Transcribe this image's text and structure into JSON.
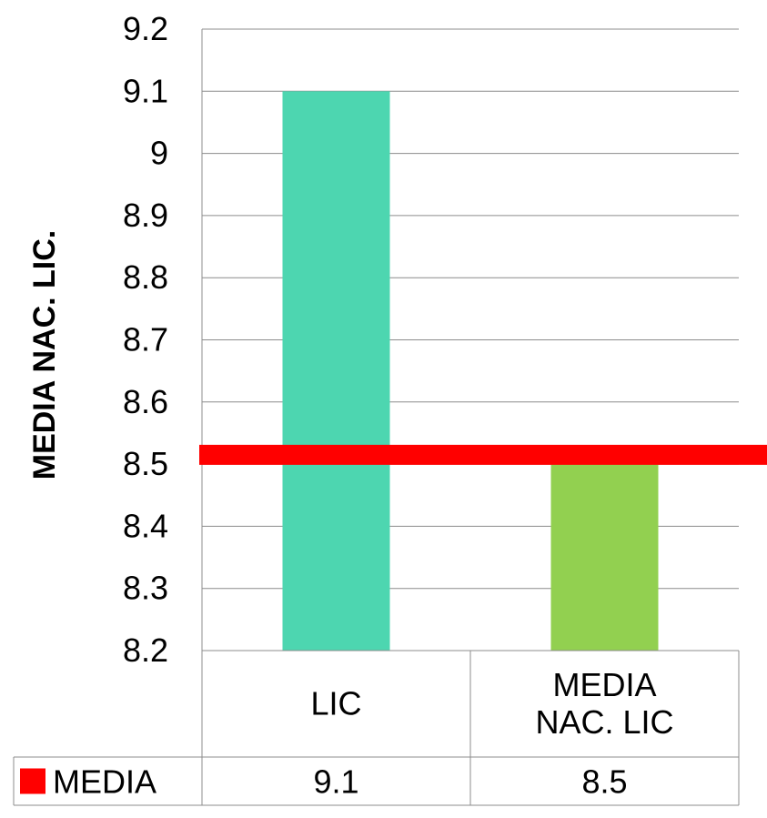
{
  "chart_data": {
    "type": "bar",
    "ylabel": "MEDIA  NAC. LIC.",
    "ylim": [
      8.2,
      9.2
    ],
    "yticks": [
      "8.2",
      "8.3",
      "8.4",
      "8.5",
      "8.6",
      "8.7",
      "8.8",
      "8.9",
      "9",
      "9.1",
      "9.2"
    ],
    "categories": [
      {
        "lines": [
          "LIC"
        ]
      },
      {
        "lines": [
          "MEDIA",
          "NAC. LIC"
        ]
      }
    ],
    "series": [
      {
        "name": "MEDIA",
        "values": [
          9.1,
          8.5
        ],
        "colors": [
          "#4dd6b0",
          "#92d050"
        ]
      }
    ],
    "table": {
      "legend_label": "MEDIA",
      "values": [
        "9.1",
        "8.5"
      ]
    },
    "reference_line": {
      "value": 8.515,
      "color": "#ff0000"
    },
    "legend_marker_color": "#ff0000",
    "grid": true
  }
}
